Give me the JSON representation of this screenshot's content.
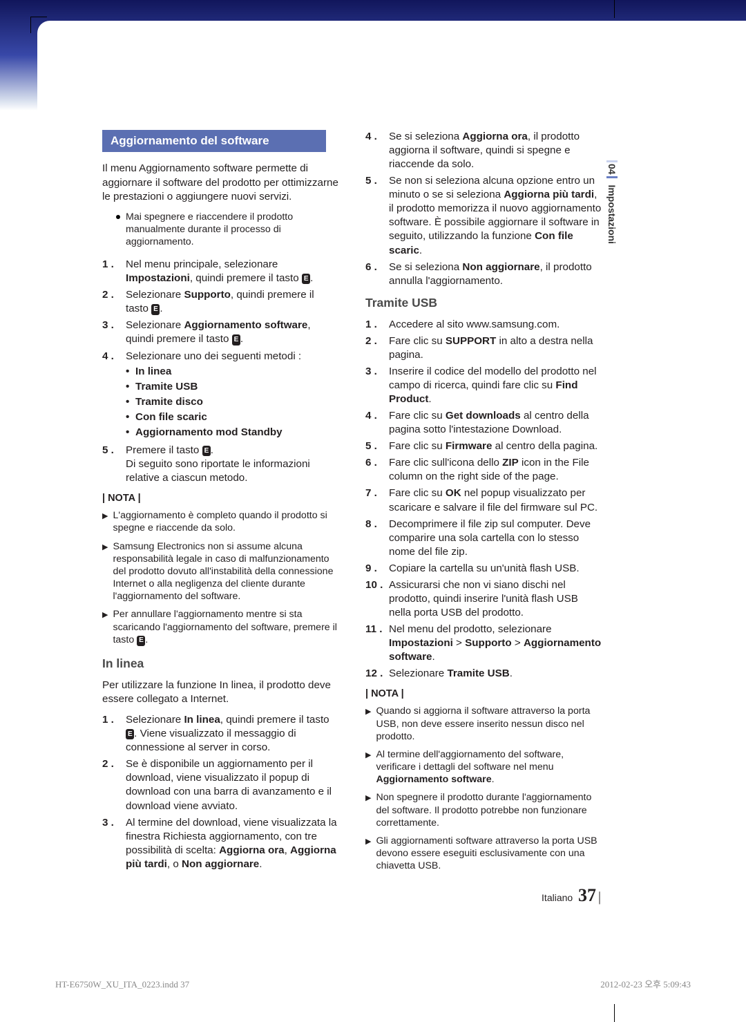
{
  "sideTab": {
    "chapter": "04",
    "title": "Impostazioni"
  },
  "footer": {
    "lang": "Italiano",
    "page": "37"
  },
  "printFooter": {
    "left": "HT-E6750W_XU_ITA_0223.indd   37",
    "right": "2012-02-23   오후 5:09:43"
  },
  "sectionTitle": "Aggiornamento del software",
  "intro": "Il menu Aggiornamento software permette di aggiornare il software del prodotto per ottimizzarne le prestazioni o aggiungere nuovi servizi.",
  "warning": "Mai spegnere e riaccendere il prodotto manualmente durante il processo di aggiornamento.",
  "mainSteps": {
    "s1a": "Nel menu principale, selezionare ",
    "s1b": "Impostazioni",
    "s1c": ", quindi premere il tasto ",
    "s2a": "Selezionare ",
    "s2b": "Supporto",
    "s2c": ", quindi premere il tasto ",
    "s3a": "Selezionare ",
    "s3b": "Aggiornamento software",
    "s3c": ", quindi premere il tasto ",
    "s4": "Selezionare uno dei seguenti metodi :",
    "s4opts": [
      "In linea",
      "Tramite USB",
      "Tramite disco",
      "Con file scaric",
      "Aggiornamento mod Standby"
    ],
    "s5a": "Premere il tasto ",
    "s5b": ".\nDi seguito sono riportate le informazioni relative a ciascun metodo."
  },
  "notaLabel": "| NOTA |",
  "nota1": [
    "L'aggiornamento è completo quando il prodotto si spegne e riaccende da solo.",
    "Samsung Electronics non si assume alcuna responsabilità legale in caso di malfunzionamento del prodotto dovuto all'instabilità della connessione Internet o alla negligenza del cliente durante l'aggiornamento del software.",
    "Per annullare l'aggiornamento mentre si sta scaricando l'aggiornamento del software, premere il tasto "
  ],
  "inlinea": {
    "title": "In linea",
    "intro": "Per utilizzare la funzione In linea, il prodotto deve essere collegato a Internet.",
    "s1a": "Selezionare ",
    "s1b": "In linea",
    "s1c": ", quindi premere il tasto ",
    "s1d": ". Viene visualizzato il messaggio di connessione al server in corso.",
    "s2": "Se è disponibile un aggiornamento per il download, viene visualizzato il popup di download con una barra di avanzamento e il download viene avviato.",
    "s3a": "Al termine del download, viene visualizzata la finestra Richiesta aggiornamento, con tre possibilità di scelta: ",
    "s3b": "Aggiorna ora",
    "s3c": ", ",
    "s3d": "Aggiorna più tardi",
    "s3e": ", o ",
    "s3f": "Non aggiornare",
    "s3g": "."
  },
  "col2top": {
    "s4a": "Se si seleziona ",
    "s4b": "Aggiorna ora",
    "s4c": ", il prodotto aggiorna il software, quindi si spegne e riaccende da solo.",
    "s5a": "Se non si seleziona alcuna opzione entro un minuto o se si seleziona ",
    "s5b": "Aggiorna più tardi",
    "s5c": ", il prodotto memorizza il nuovo aggiornamento software. È possibile aggiornare il software in seguito, utilizzando la funzione ",
    "s5d": "Con file scaric",
    "s5e": ".",
    "s6a": "Se si seleziona ",
    "s6b": "Non aggiornare",
    "s6c": ", il prodotto annulla l'aggiornamento."
  },
  "usb": {
    "title": "Tramite USB",
    "s1": "Accedere al sito www.samsung.com.",
    "s2a": "Fare clic su ",
    "s2b": "SUPPORT",
    "s2c": " in alto a destra nella pagina.",
    "s3a": "Inserire il codice del modello del prodotto nel campo di ricerca, quindi fare clic su ",
    "s3b": "Find Product",
    "s3c": ".",
    "s4a": "Fare clic su ",
    "s4b": "Get downloads",
    "s4c": " al centro della pagina sotto l'intestazione Download.",
    "s5a": "Fare clic su ",
    "s5b": "Firmware",
    "s5c": " al centro della pagina.",
    "s6a": "Fare clic sull'icona dello ",
    "s6b": "ZIP",
    "s6c": " icon in the File column on the right side of the page.",
    "s7a": "Fare clic su ",
    "s7b": "OK",
    "s7c": " nel popup visualizzato per scaricare e salvare il file del firmware sul PC.",
    "s8": "Decomprimere il file zip sul computer. Deve comparire una sola cartella con lo stesso nome del file zip.",
    "s9": "Copiare la cartella su un'unità flash USB.",
    "s10": "Assicurarsi che non vi siano dischi nel prodotto, quindi inserire l'unità flash USB nella porta USB del prodotto.",
    "s11a": "Nel menu del prodotto, selezionare ",
    "s11b": "Impostazioni",
    "s11c": " > ",
    "s11d": "Supporto",
    "s11e": " > ",
    "s11f": "Aggiornamento software",
    "s11g": ".",
    "s12a": "Selezionare ",
    "s12b": "Tramite USB",
    "s12c": "."
  },
  "nota2": [
    "Quando si aggiorna il software attraverso la porta USB, non deve essere inserito nessun disco nel prodotto.",
    "Al termine dell'aggiornamento del software, verificare i dettagli del software nel menu ",
    "Non spegnere il prodotto durante l'aggiornamento del software. Il prodotto potrebbe non funzionare correttamente.",
    "Gli aggiornamenti software attraverso la porta USB devono essere eseguiti esclusivamente con una chiavetta USB."
  ],
  "nota2_bold": "Aggiornamento software"
}
